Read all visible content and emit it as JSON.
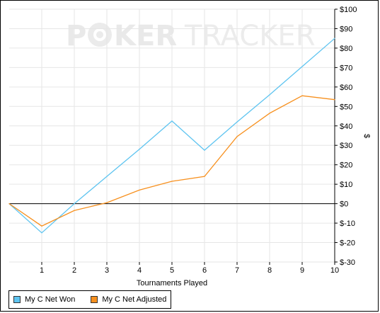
{
  "watermark": {
    "part1": "P",
    "part2": "KER",
    "part3": "TRACKER"
  },
  "colors": {
    "series1": "#5ec4f0",
    "series2": "#f7901e",
    "grid": "#e6e6e6",
    "axis": "#000000"
  },
  "chart_data": {
    "type": "line",
    "xlabel": "Tournaments Played",
    "ylabel": "$",
    "x": [
      0,
      1,
      2,
      3,
      4,
      5,
      6,
      7,
      8,
      9,
      10
    ],
    "xlim": [
      0,
      10
    ],
    "xticks": [
      "1",
      "2",
      "3",
      "4",
      "5",
      "6",
      "7",
      "8",
      "9",
      "10"
    ],
    "ylim": [
      -30,
      100
    ],
    "yticks": [
      "$100",
      "$90",
      "$80",
      "$70",
      "$60",
      "$50",
      "$40",
      "$30",
      "$20",
      "$10",
      "$0",
      "$-10",
      "$-20",
      "$-30"
    ],
    "ytick_values": [
      100,
      90,
      80,
      70,
      60,
      50,
      40,
      30,
      20,
      10,
      0,
      -10,
      -20,
      -30
    ],
    "grid": true,
    "legend_position": "bottom-left",
    "series": [
      {
        "name": "My C Net Won",
        "color": "#5ec4f0",
        "values": [
          0,
          -15,
          0,
          14,
          28,
          42.5,
          27.5,
          42,
          56,
          70.5,
          85
        ]
      },
      {
        "name": "My C Net Adjusted",
        "color": "#f7901e",
        "values": [
          0,
          -11.5,
          -3.5,
          0.5,
          7,
          11.5,
          14,
          34.5,
          46.5,
          55.5,
          53.5
        ]
      }
    ]
  }
}
